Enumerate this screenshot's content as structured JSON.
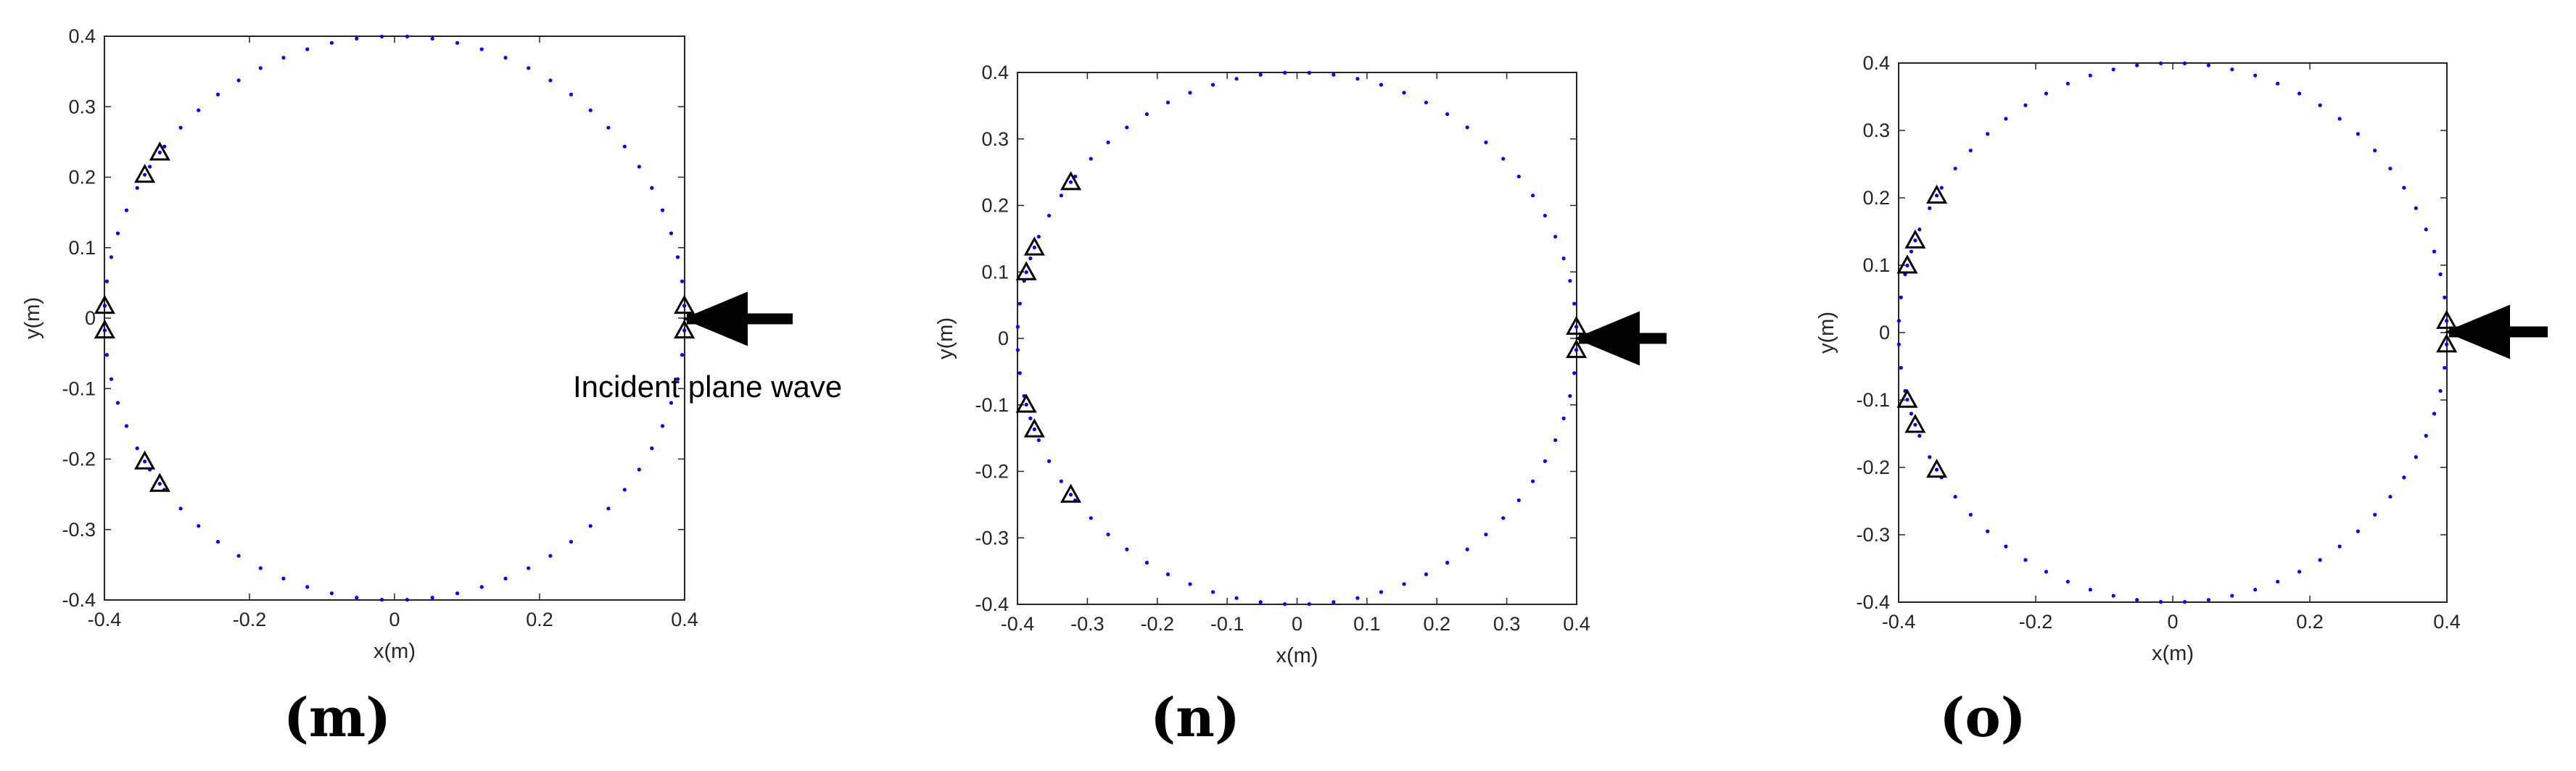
{
  "chart_data": [
    {
      "type": "scatter",
      "xlabel": "x(m)",
      "ylabel": "y(m)",
      "xlim": [
        -0.4,
        0.4
      ],
      "ylim": [
        -0.4,
        0.4
      ],
      "xticks": [
        -0.4,
        -0.2,
        0,
        0.2,
        0.4
      ],
      "yticks": [
        0.4,
        0.3,
        0.2,
        0.1,
        0,
        -0.1,
        -0.2,
        -0.3,
        -0.4
      ],
      "xtick_labels": [
        "-0.4",
        "-0.2",
        "0",
        "0.2",
        "0.4"
      ],
      "ytick_labels": [
        "0.4",
        "0.3",
        "0.2",
        "0.1",
        "0",
        "-0.1",
        "-0.2",
        "-0.3",
        "-0.4"
      ],
      "grid": false,
      "circle": {
        "radius": 0.4,
        "n_points": 72,
        "color": "#0000ff"
      },
      "series": [
        {
          "marker": "triangle",
          "x": [
            -0.3237,
            -0.3444,
            -0.3996,
            -0.3996,
            -0.3444,
            -0.3237,
            0.3996,
            0.3996
          ],
          "y": [
            0.2351,
            0.2034,
            0.0175,
            -0.0175,
            -0.2034,
            -0.2351,
            0.0175,
            -0.0175
          ]
        }
      ],
      "annotation": {
        "text": "Incident plane wave",
        "arrow_direction": "left",
        "arrow_target": [
          0.4,
          0
        ]
      },
      "caption": "(m)"
    },
    {
      "type": "scatter",
      "xlabel": "x(m)",
      "ylabel": "y(m)",
      "xlim": [
        -0.4,
        0.4
      ],
      "ylim": [
        -0.4,
        0.4
      ],
      "xticks": [
        -0.4,
        -0.3,
        -0.2,
        -0.1,
        0,
        0.1,
        0.2,
        0.3,
        0.4
      ],
      "yticks": [
        0.4,
        0.3,
        0.2,
        0.1,
        0,
        -0.1,
        -0.2,
        -0.3,
        -0.4
      ],
      "xtick_labels": [
        "-0.4",
        "-0.3",
        "-0.2",
        "-0.1",
        "0",
        "0.1",
        "0.2",
        "0.3",
        "0.4"
      ],
      "ytick_labels": [
        "0.4",
        "0.3",
        "0.2",
        "0.1",
        "0",
        "-0.1",
        "-0.2",
        "-0.3",
        "-0.4"
      ],
      "grid": false,
      "circle": {
        "radius": 0.4,
        "n_points": 72,
        "color": "#0000ff"
      },
      "series": [
        {
          "marker": "triangle",
          "x": [
            -0.3237,
            -0.3758,
            -0.3874,
            -0.3874,
            -0.3758,
            -0.3237,
            0.3996,
            0.3996
          ],
          "y": [
            0.2351,
            0.1368,
            0.0996,
            -0.0996,
            -0.1368,
            -0.2351,
            0.0175,
            -0.0175
          ]
        }
      ],
      "annotation": {
        "text": "",
        "arrow_direction": "left",
        "arrow_target": [
          0.4,
          0
        ]
      },
      "caption": "(n)"
    },
    {
      "type": "scatter",
      "xlabel": "x(m)",
      "ylabel": "y(m)",
      "xlim": [
        -0.4,
        0.4
      ],
      "ylim": [
        -0.4,
        0.4
      ],
      "xticks": [
        -0.4,
        -0.2,
        0,
        0.2,
        0.4
      ],
      "yticks": [
        0.4,
        0.3,
        0.2,
        0.1,
        0,
        -0.1,
        -0.2,
        -0.3,
        -0.4
      ],
      "xtick_labels": [
        "-0.4",
        "-0.2",
        "0",
        "0.2",
        "0.4"
      ],
      "ytick_labels": [
        "0.4",
        "0.3",
        "0.2",
        "0.1",
        "0",
        "-0.1",
        "-0.2",
        "-0.3",
        "-0.4"
      ],
      "grid": false,
      "circle": {
        "radius": 0.4,
        "n_points": 72,
        "color": "#0000ff"
      },
      "series": [
        {
          "marker": "triangle",
          "x": [
            -0.3444,
            -0.3758,
            -0.3874,
            -0.3874,
            -0.3758,
            -0.3444,
            0.3996,
            0.3996
          ],
          "y": [
            0.2034,
            0.1368,
            0.0996,
            -0.0996,
            -0.1368,
            -0.2034,
            0.0175,
            -0.0175
          ]
        }
      ],
      "annotation": {
        "text": "",
        "arrow_direction": "left",
        "arrow_target": [
          0.4,
          0
        ]
      },
      "caption": "(o)"
    }
  ]
}
